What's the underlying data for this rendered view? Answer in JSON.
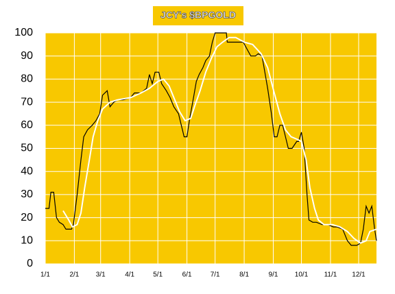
{
  "chart_data": {
    "type": "line",
    "title": "JCY's $BPGOLD",
    "xlim": [
      0,
      353
    ],
    "xticks": [
      {
        "value": 0,
        "label": "1/1"
      },
      {
        "value": 31,
        "label": "2/1"
      },
      {
        "value": 59,
        "label": "3/1"
      },
      {
        "value": 90,
        "label": "4/1"
      },
      {
        "value": 120,
        "label": "5/1"
      },
      {
        "value": 151,
        "label": "6/1"
      },
      {
        "value": 181,
        "label": "7/1"
      },
      {
        "value": 212,
        "label": "8/1"
      },
      {
        "value": 243,
        "label": "9/1"
      },
      {
        "value": 273,
        "label": "10/1"
      },
      {
        "value": 304,
        "label": "11/1"
      },
      {
        "value": 334,
        "label": "12/1"
      }
    ],
    "ylim": [
      0,
      100
    ],
    "yticks": [
      0,
      10,
      20,
      30,
      40,
      50,
      60,
      70,
      80,
      90,
      100
    ],
    "grid": true,
    "background": "#f8c800",
    "series": [
      {
        "color": "#000000",
        "x": [
          0,
          4,
          6,
          9,
          12,
          15,
          19,
          22,
          28,
          30,
          34,
          38,
          41,
          45,
          50,
          54,
          58,
          61,
          66,
          69,
          73,
          77,
          83,
          91,
          95,
          102,
          108,
          111,
          114,
          117,
          121,
          124,
          129,
          133,
          137,
          142,
          145,
          148,
          151,
          154,
          158,
          161,
          164,
          168,
          171,
          175,
          178,
          181,
          187,
          193,
          194,
          200,
          211,
          215,
          219,
          224,
          227,
          231,
          234,
          237,
          241,
          244,
          247,
          250,
          253,
          256,
          259,
          263,
          268,
          270,
          273,
          276,
          279,
          281,
          285,
          289,
          295,
          301,
          307,
          311,
          317,
          322,
          326,
          332,
          336,
          339,
          342,
          345,
          348,
          351,
          353
        ],
        "values": [
          24,
          24,
          31,
          31,
          20,
          18,
          17,
          15,
          15,
          17,
          30,
          45,
          55,
          58,
          60,
          62,
          65,
          73,
          75,
          68,
          70,
          71,
          71,
          72,
          74,
          74,
          76,
          82,
          78,
          83,
          83,
          78,
          75,
          72,
          68,
          65,
          60,
          55,
          55,
          63,
          72,
          79,
          82,
          85,
          88,
          90,
          96,
          100,
          100,
          100,
          96,
          96,
          96,
          93,
          90,
          90,
          91,
          90,
          83,
          76,
          65,
          55,
          55,
          60,
          60,
          55,
          50,
          50,
          53,
          53,
          57,
          50,
          30,
          19,
          18,
          18,
          17,
          17,
          16,
          16,
          15,
          10,
          8,
          8,
          9,
          15,
          25,
          22,
          25,
          15,
          10
        ]
      },
      {
        "color": "#ffffff",
        "x": [
          19,
          25,
          29,
          34,
          38,
          42,
          47,
          51,
          56,
          61,
          69,
          77,
          91,
          102,
          111,
          120,
          126,
          132,
          137,
          143,
          149,
          155,
          159,
          165,
          171,
          177,
          183,
          189,
          196,
          203,
          212,
          221,
          230,
          237,
          244,
          250,
          256,
          262,
          268,
          273,
          278,
          282,
          287,
          291,
          297,
          306,
          314,
          322,
          329,
          336,
          342,
          346,
          353
        ],
        "values": [
          23,
          19,
          16,
          17,
          22,
          33,
          45,
          55,
          62,
          67,
          70,
          71,
          72,
          74,
          76,
          79,
          80,
          77,
          72,
          66,
          62,
          63,
          68,
          75,
          83,
          89,
          94,
          96,
          98,
          98,
          96,
          95,
          91,
          85,
          74,
          65,
          58,
          55,
          54,
          53,
          45,
          33,
          24,
          19,
          17,
          17,
          16,
          14,
          11,
          9,
          10,
          14,
          15
        ]
      }
    ]
  }
}
